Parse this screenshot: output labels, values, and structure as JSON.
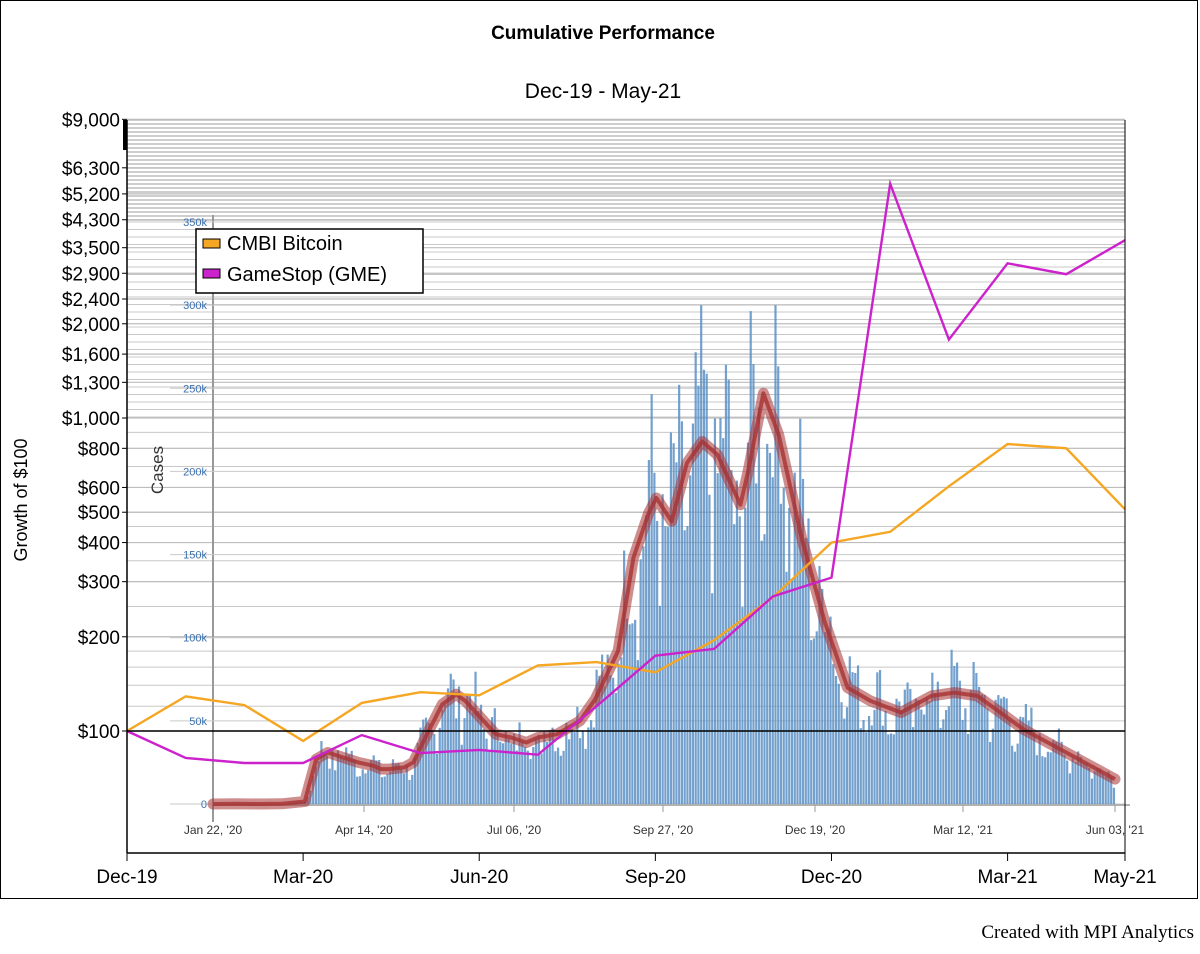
{
  "chart_data": {
    "type": "line",
    "title": "Cumulative Performance",
    "subtitle": "Dec-19 - May-21",
    "ylabel": "Growth of $100",
    "xlabel": "",
    "scale": "log",
    "ylim": [
      75,
      9000
    ],
    "yticks": [
      {
        "value": 9000,
        "label": "$9,000"
      },
      {
        "value": 6300,
        "label": "$6,300"
      },
      {
        "value": 5200,
        "label": "$5,200"
      },
      {
        "value": 4300,
        "label": "$4,300"
      },
      {
        "value": 3500,
        "label": "$3,500"
      },
      {
        "value": 2900,
        "label": "$2,900"
      },
      {
        "value": 2400,
        "label": "$2,400"
      },
      {
        "value": 2000,
        "label": "$2,000"
      },
      {
        "value": 1600,
        "label": "$1,600"
      },
      {
        "value": 1300,
        "label": "$1,300"
      },
      {
        "value": 1000,
        "label": "$1,000"
      },
      {
        "value": 800,
        "label": "$800"
      },
      {
        "value": 600,
        "label": "$600"
      },
      {
        "value": 500,
        "label": "$500"
      },
      {
        "value": 400,
        "label": "$400"
      },
      {
        "value": 300,
        "label": "$300"
      },
      {
        "value": 200,
        "label": "$200"
      },
      {
        "value": 100,
        "label": "$100"
      }
    ],
    "x": [
      "Dec-19",
      "Jan-20",
      "Feb-20",
      "Mar-20",
      "Apr-20",
      "May-20",
      "Jun-20",
      "Jul-20",
      "Aug-20",
      "Sep-20",
      "Oct-20",
      "Nov-20",
      "Dec-20",
      "Jan-21",
      "Feb-21",
      "Mar-21",
      "Apr-21",
      "May-21"
    ],
    "xticks": [
      "Dec-19",
      "Mar-20",
      "Jun-20",
      "Sep-20",
      "Dec-20",
      "Mar-21",
      "May-21"
    ],
    "legend_position": "top-left",
    "series": [
      {
        "name": "CMBI Bitcoin",
        "color": "#f5a623",
        "values": [
          100,
          129,
          121,
          93,
          123,
          133,
          130,
          162,
          166,
          154,
          195,
          267,
          400,
          433,
          605,
          826,
          800,
          511
        ]
      },
      {
        "name": "GameStop (GME)",
        "color": "#cc22cc",
        "values": [
          100,
          82,
          79,
          79,
          97,
          85,
          87,
          84,
          120,
          174,
          183,
          269,
          309,
          5600,
          1780,
          3120,
          2880,
          3700
        ]
      }
    ]
  },
  "inset": {
    "ylabel": "Cases",
    "yticks": [
      "0",
      "50k",
      "100k",
      "150k",
      "200k",
      "250k",
      "300k",
      "350k"
    ],
    "xticks": [
      "Jan 22, '20",
      "Apr 14, '20",
      "Jul 06, '20",
      "Sep 27, '20",
      "Dec 19, '20",
      "Mar 12, '21",
      "Jun 03, '21"
    ],
    "daily_color": "#5b8fc4",
    "avg_color": "#a83232",
    "avg_path": [
      [
        0,
        0
      ],
      [
        0.03,
        200
      ],
      [
        0.06,
        0
      ],
      [
        0.09,
        100
      ],
      [
        0.12,
        1500
      ],
      [
        0.135,
        27000
      ],
      [
        0.15,
        31000
      ],
      [
        0.17,
        28000
      ],
      [
        0.19,
        25000
      ],
      [
        0.21,
        23000
      ],
      [
        0.22,
        21000
      ],
      [
        0.23,
        21000
      ],
      [
        0.25,
        22000
      ],
      [
        0.262,
        25000
      ],
      [
        0.28,
        42000
      ],
      [
        0.3,
        60000
      ],
      [
        0.318,
        66000
      ],
      [
        0.33,
        62000
      ],
      [
        0.35,
        52000
      ],
      [
        0.37,
        42000
      ],
      [
        0.39,
        40000
      ],
      [
        0.41,
        37000
      ],
      [
        0.425,
        40000
      ],
      [
        0.45,
        42000
      ],
      [
        0.48,
        50000
      ],
      [
        0.5,
        63000
      ],
      [
        0.53,
        92000
      ],
      [
        0.55,
        148000
      ],
      [
        0.57,
        175000
      ],
      [
        0.58,
        184000
      ],
      [
        0.6,
        170000
      ],
      [
        0.62,
        205000
      ],
      [
        0.64,
        218000
      ],
      [
        0.66,
        210000
      ],
      [
        0.69,
        180000
      ],
      [
        0.7,
        200000
      ],
      [
        0.72,
        247000
      ],
      [
        0.74,
        222000
      ],
      [
        0.77,
        160000
      ],
      [
        0.8,
        110000
      ],
      [
        0.83,
        70000
      ],
      [
        0.86,
        62000
      ],
      [
        0.9,
        55000
      ],
      [
        0.94,
        65000
      ],
      [
        0.97,
        67000
      ],
      [
        1,
        65000
      ],
      [
        1.03,
        55000
      ],
      [
        1.06,
        45000
      ],
      [
        1.1,
        35000
      ],
      [
        1.14,
        25000
      ],
      [
        1.18,
        15000
      ]
    ],
    "daily_peak": 300000
  },
  "credit": "Created with MPI Analytics"
}
